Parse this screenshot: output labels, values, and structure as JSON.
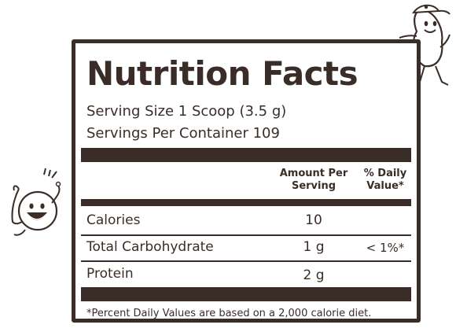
{
  "label": {
    "title": "Nutrition Facts",
    "serving_size": "Serving Size 1 Scoop (3.5 g)",
    "servings_per_container": "Servings Per Container 109",
    "headers": {
      "amount_line1": "Amount Per",
      "amount_line2": "Serving",
      "dv_line1": "% Daily",
      "dv_line2": "Value*"
    },
    "rows": [
      {
        "name": "Calories",
        "amount": "10",
        "dv": ""
      },
      {
        "name": "Total Carbohydrate",
        "amount": "1 g",
        "dv": "< 1%*"
      },
      {
        "name": "Protein",
        "amount": "2 g",
        "dv": ""
      }
    ],
    "footnote": "*Percent Daily Values are based on a 2,000 calorie diet."
  },
  "colors": {
    "ink": "#3a2d28",
    "background": "#ffffff"
  },
  "icons": [
    "round-smiling-mascot-icon",
    "capped-peanut-mascot-icon"
  ]
}
